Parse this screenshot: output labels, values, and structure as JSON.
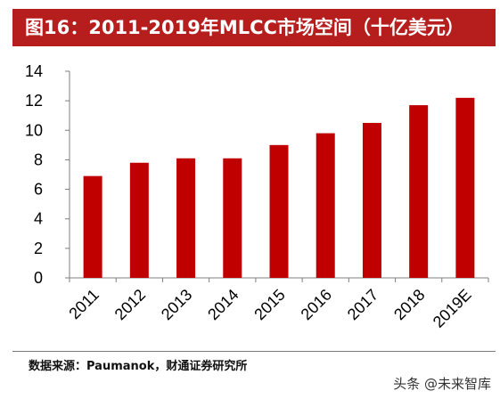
{
  "title": "图16：2011-2019年MLCC市场空间（十亿美元）",
  "source": "数据来源：Paumanok，财通证券研究所",
  "watermark": "头条 @未来智库",
  "colors": {
    "title_bg": "#b61d1d",
    "bar": "#c00000",
    "axis": "#7f7f7f"
  },
  "chart_data": {
    "type": "bar",
    "categories": [
      "2011",
      "2012",
      "2013",
      "2014",
      "2015",
      "2016",
      "2017",
      "2018",
      "2019E"
    ],
    "values": [
      6.9,
      7.8,
      8.1,
      8.1,
      9.0,
      9.8,
      10.5,
      11.7,
      12.2
    ],
    "yticks": [
      0,
      2,
      4,
      6,
      8,
      10,
      12,
      14
    ],
    "ylim": [
      0,
      14
    ],
    "grid": false,
    "legend": "none"
  }
}
